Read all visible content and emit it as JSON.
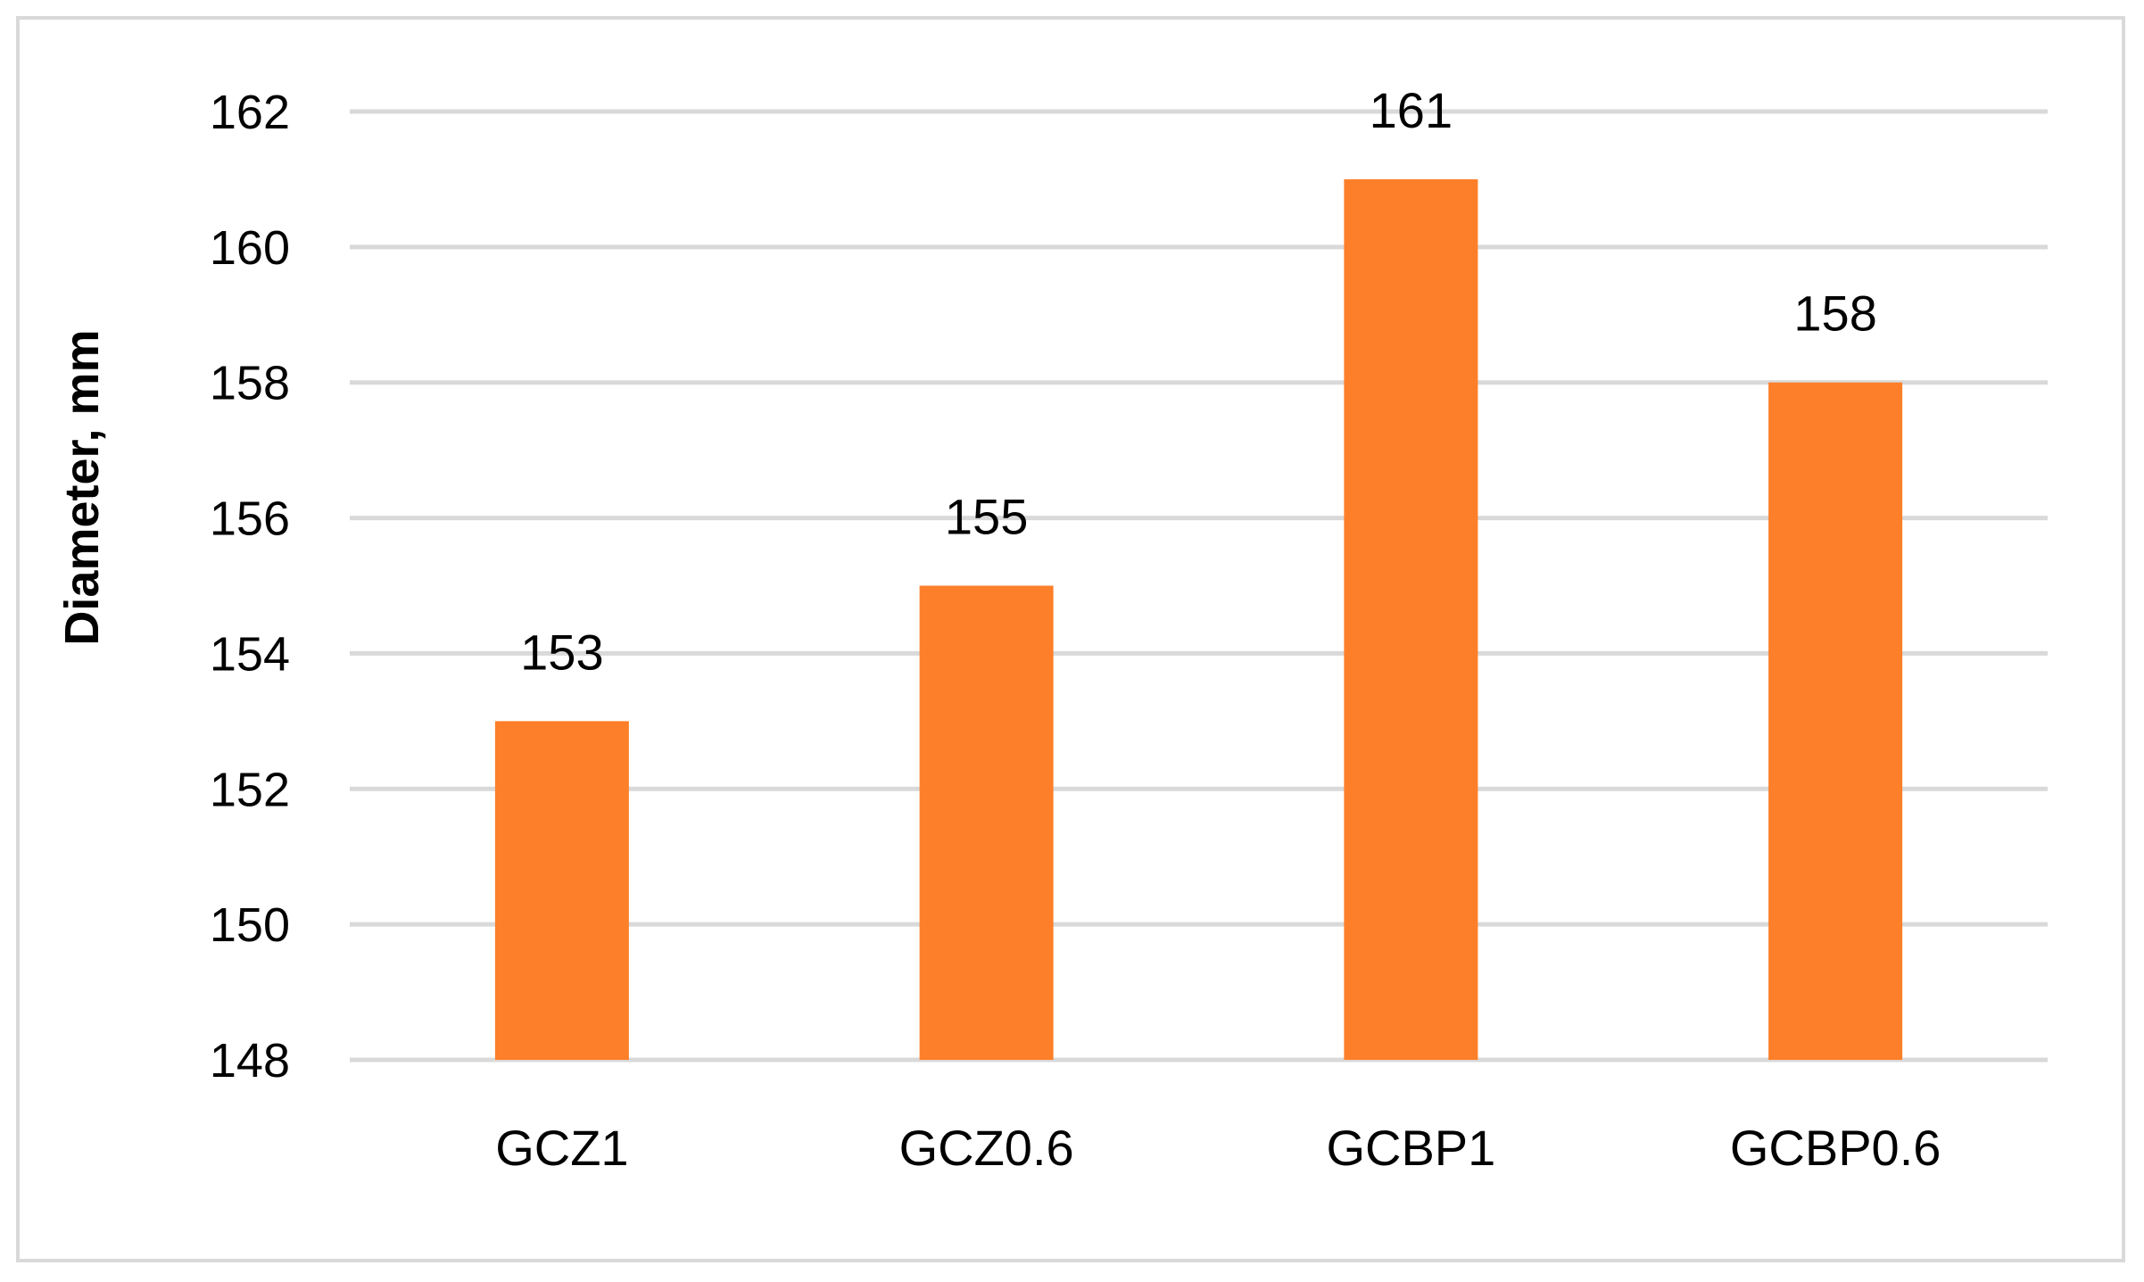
{
  "chart_data": {
    "type": "bar",
    "categories": [
      "GCZ1",
      "GCZ0.6",
      "GCBP1",
      "GCBP0.6"
    ],
    "values": [
      153,
      155,
      161,
      158
    ],
    "data_labels": [
      "153",
      "155",
      "161",
      "158"
    ],
    "title": "",
    "xlabel": "",
    "ylabel": "Diameter, mm",
    "ylim": [
      148,
      162
    ],
    "yticks": [
      148,
      150,
      152,
      154,
      156,
      158,
      160,
      162
    ],
    "ytick_labels": [
      "148",
      "150",
      "152",
      "154",
      "156",
      "158",
      "160",
      "162"
    ],
    "grid": true,
    "legend": "none",
    "colors": {
      "bar": "#fd7f29",
      "grid": "#d9d9d9",
      "text": "#000000",
      "frame": "#d9d9d9"
    }
  }
}
